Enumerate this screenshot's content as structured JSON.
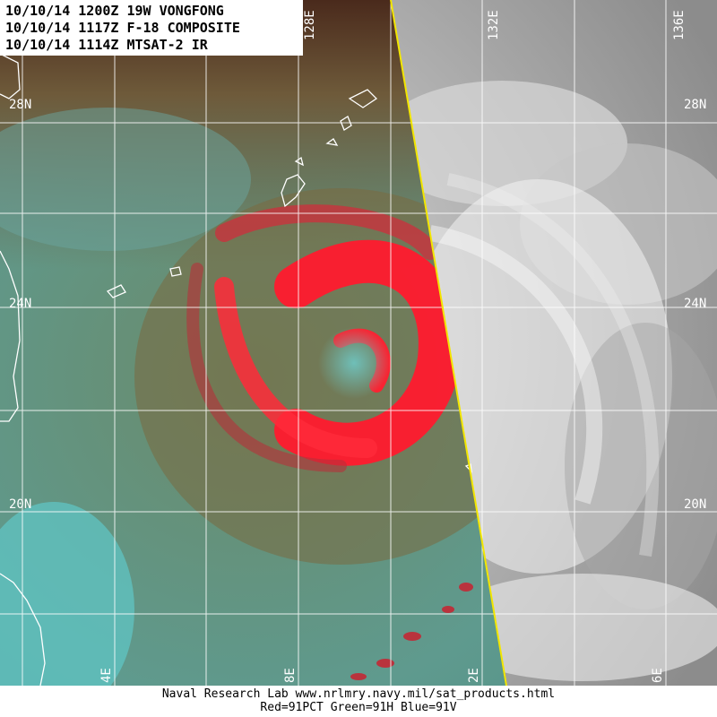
{
  "header": {
    "line1": "10/10/14 1200Z 19W VONGFONG",
    "line2": "10/10/14 1117Z F-18 COMPOSITE",
    "line3": "10/10/14 1114Z MTSAT-2 IR"
  },
  "grid": {
    "lat_labels": [
      "28N",
      "24N",
      "20N"
    ],
    "lon_labels_top": [
      "128E",
      "132E",
      "136E"
    ],
    "lon_labels_bottom": [
      "4E",
      "8E",
      "2E",
      "6E"
    ]
  },
  "footer": {
    "line1": "Naval Research Lab  www.nrlmry.navy.mil/sat_products.html",
    "line2": "Red=91PCT  Green=91H  Blue=91V"
  },
  "colors": {
    "swath_edge": "#f2e600",
    "grid": "#ffffff",
    "convection": "#ff1a2e"
  }
}
